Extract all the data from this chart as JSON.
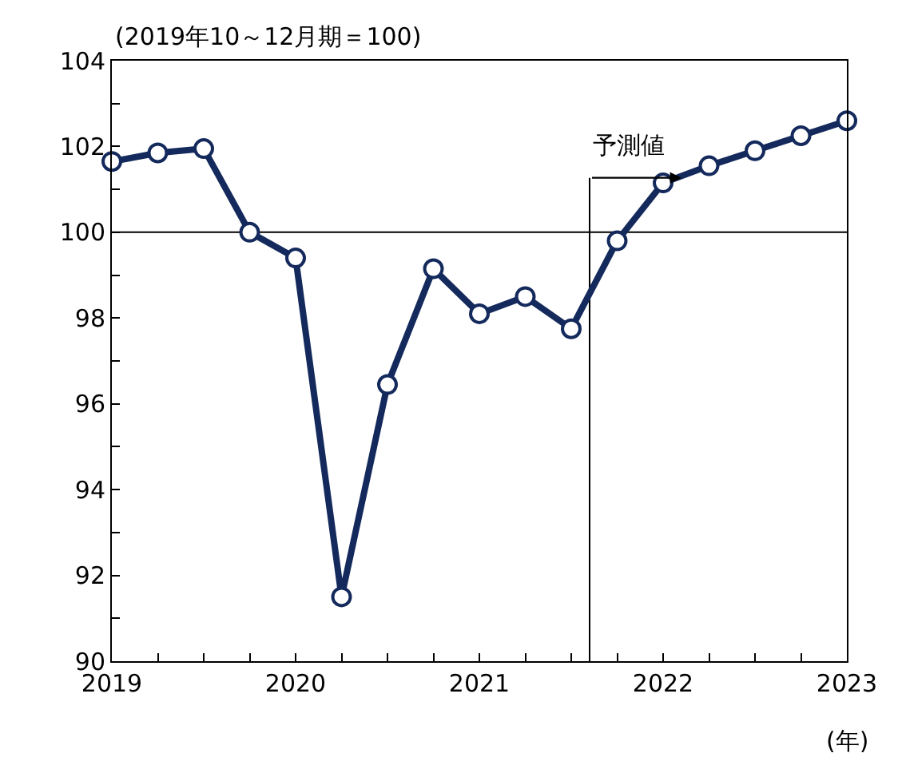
{
  "chart_data": {
    "type": "line",
    "ylabel": "(2019年10～12月期＝100)",
    "xlabel": "(年)",
    "x": [
      2019,
      2019.25,
      2019.5,
      2019.75,
      2020,
      2020.25,
      2020.5,
      2020.75,
      2021,
      2021.25,
      2021.5,
      2021.75,
      2022,
      2022.25,
      2022.5,
      2022.75,
      2023
    ],
    "series": [
      {
        "color": "#142a5c",
        "values": [
          101.65,
          101.85,
          101.95,
          100.0,
          99.4,
          91.5,
          96.45,
          99.15,
          98.1,
          98.5,
          97.75,
          99.8,
          101.15,
          101.55,
          101.9,
          102.25,
          102.6
        ]
      }
    ],
    "xlim": [
      2019,
      2023
    ],
    "xticks": [
      2019,
      {
        "value": 2019.25,
        "label": null
      },
      {
        "value": 2019.5,
        "label": null
      },
      {
        "value": 2019.75,
        "label": null
      },
      2020,
      {
        "value": 2020.25,
        "label": null
      },
      {
        "value": 2020.5,
        "label": null
      },
      {
        "value": 2020.75,
        "label": null
      },
      2021,
      {
        "value": 2021.25,
        "label": null
      },
      {
        "value": 2021.5,
        "label": null
      },
      {
        "value": 2021.75,
        "label": null
      },
      2022,
      {
        "value": 2022.25,
        "label": null
      },
      {
        "value": 2022.5,
        "label": null
      },
      {
        "value": 2022.75,
        "label": null
      },
      2023
    ],
    "ylim": [
      90,
      104
    ],
    "yticks": [
      90,
      {
        "value": 91,
        "label": null
      },
      92,
      {
        "value": 93,
        "label": null
      },
      94,
      {
        "value": 95,
        "label": null
      },
      96,
      {
        "value": 97,
        "label": null
      },
      98,
      {
        "value": 99,
        "label": null
      },
      100,
      {
        "value": 101,
        "label": null
      },
      102,
      {
        "value": 103,
        "label": null
      },
      104
    ],
    "ref_lines": [
      {
        "axis": "y",
        "value": 100,
        "color": "#000000"
      },
      {
        "axis": "x",
        "value": 2021.6,
        "label": "予測値",
        "color": "#000000"
      }
    ],
    "marker": "circle",
    "line_style": "solid",
    "grid": false
  }
}
